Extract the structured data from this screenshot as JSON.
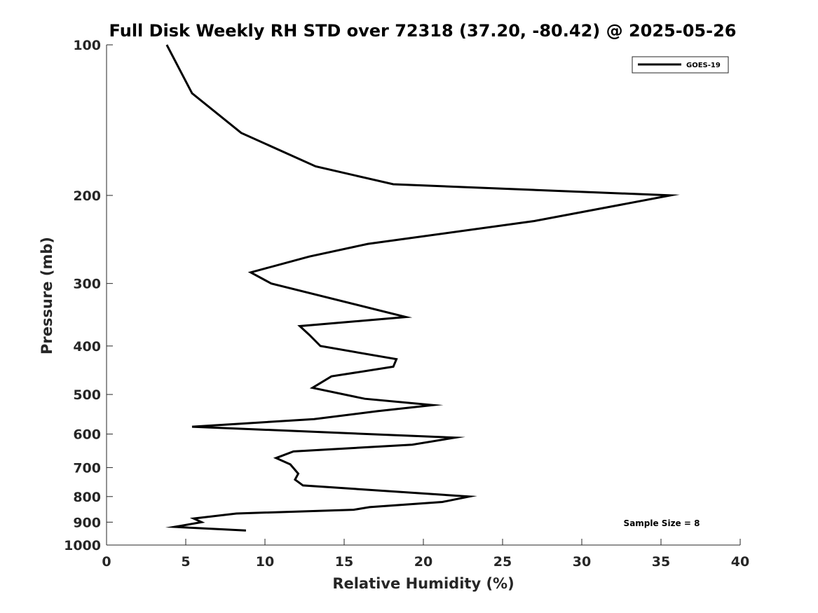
{
  "chart_data": {
    "type": "line",
    "title": "Full Disk Weekly RH STD over 72318 (37.20, -80.42) @ 2025-05-26",
    "xlabel": "Relative Humidity (%)",
    "ylabel": "Pressure (mb)",
    "xlim": [
      0,
      40
    ],
    "ylim": [
      100,
      1000
    ],
    "y_scale": "log",
    "y_reversed": true,
    "x_ticks": [
      0,
      5,
      10,
      15,
      20,
      25,
      30,
      35,
      40
    ],
    "y_ticks": [
      100,
      200,
      300,
      400,
      500,
      600,
      700,
      800,
      900,
      1000
    ],
    "grid": false,
    "legend": {
      "placement": "top-right",
      "entries": [
        "GOES-19"
      ]
    },
    "annotation": "Sample Size = 8",
    "series": [
      {
        "name": "GOES-19",
        "color": "#000000",
        "x": [
          3.8,
          5.4,
          8.5,
          13.2,
          18.1,
          35.6,
          27.0,
          16.5,
          12.8,
          9.1,
          10.4,
          18.9,
          12.2,
          12.8,
          13.5,
          18.3,
          18.1,
          14.2,
          13.0,
          16.3,
          20.6,
          17.1,
          13.1,
          5.4,
          22.0,
          19.3,
          11.8,
          10.7,
          11.6,
          12.1,
          11.9,
          12.4,
          22.9,
          21.2,
          16.6,
          15.6,
          8.2,
          5.5,
          6.0,
          4.3,
          8.8
        ],
        "y": [
          100,
          125,
          150,
          175,
          190,
          200,
          225,
          250,
          265,
          285,
          300,
          350,
          365,
          380,
          400,
          425,
          440,
          460,
          485,
          510,
          525,
          540,
          560,
          580,
          610,
          630,
          650,
          670,
          690,
          720,
          740,
          760,
          800,
          820,
          840,
          850,
          865,
          885,
          900,
          920,
          935
        ]
      }
    ]
  }
}
